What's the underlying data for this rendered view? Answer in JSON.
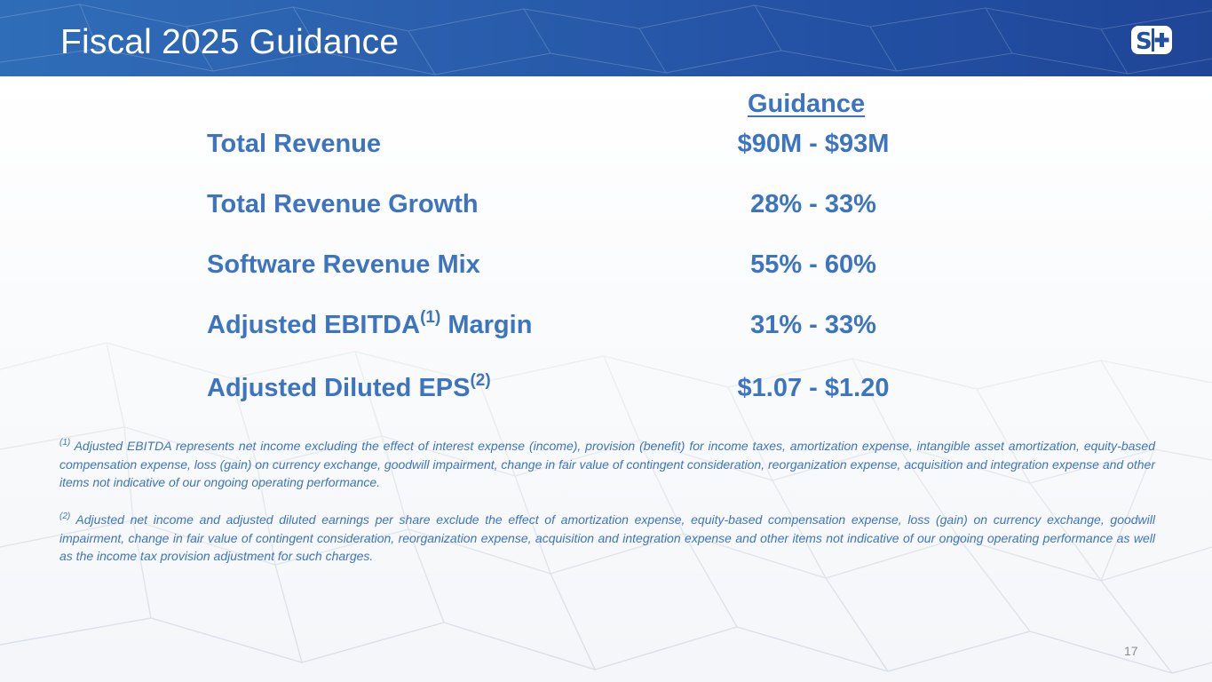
{
  "slide": {
    "title": "Fiscal 2025 Guidance",
    "page_number": "17",
    "logo_text": "S+"
  },
  "table": {
    "column_header": "Guidance",
    "rows": [
      {
        "label": "Total Revenue",
        "sup": "",
        "value": "$90M - $93M"
      },
      {
        "label": "Total Revenue Growth",
        "sup": "",
        "value": "28% - 33%"
      },
      {
        "label": "Software Revenue Mix",
        "sup": "",
        "value": "55% - 60%"
      },
      {
        "label": "Adjusted EBITDA",
        "sup": "(1)",
        "suffix": " Margin",
        "value": "31% - 33%"
      },
      {
        "label": "Adjusted Diluted EPS",
        "sup": "(2)",
        "value": "$1.07 - $1.20"
      }
    ]
  },
  "footnotes": [
    {
      "marker": "(1)",
      "text": " Adjusted EBITDA represents net income excluding the effect of interest expense (income), provision (benefit) for income taxes, amortization expense, intangible asset amortization, equity-based compensation expense, loss (gain) on currency exchange, goodwill impairment, change in fair value of contingent consideration, reorganization expense, acquisition and integration expense and other items not indicative of our ongoing operating performance."
    },
    {
      "marker": "(2)",
      "text": " Adjusted net income and adjusted diluted earnings per share exclude the effect of amortization expense, equity-based compensation expense, loss (gain) on currency exchange, goodwill impairment, change in fair value of contingent consideration, reorganization expense, acquisition and integration expense and other items not indicative of our ongoing operating performance as well as the income tax provision adjustment for such charges."
    }
  ],
  "colors": {
    "header_blue": "#2b5fae",
    "text_blue": "#3d74c1",
    "page_number_gray": "#8c8c8c"
  }
}
